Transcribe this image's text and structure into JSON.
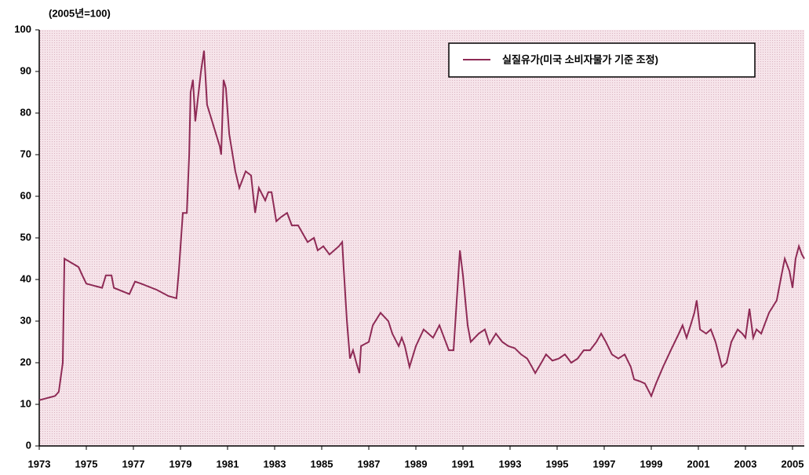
{
  "chart_data": {
    "type": "line",
    "axis_title": "(2005년=100)",
    "x": [
      1973.0,
      1973.67,
      1973.83,
      1974.0,
      1974.07,
      1974.67,
      1974.83,
      1975.0,
      1975.67,
      1975.83,
      1976.07,
      1976.17,
      1976.83,
      1977.07,
      1977.33,
      1978.0,
      1978.5,
      1978.83,
      1978.93,
      1979.1,
      1979.27,
      1979.37,
      1979.43,
      1979.53,
      1979.63,
      1979.73,
      1979.87,
      1980.0,
      1980.13,
      1980.4,
      1980.67,
      1980.73,
      1980.83,
      1980.93,
      1981.07,
      1981.33,
      1981.5,
      1981.77,
      1982.0,
      1982.17,
      1982.33,
      1982.6,
      1982.73,
      1982.87,
      1983.07,
      1983.27,
      1983.53,
      1983.73,
      1984.0,
      1984.2,
      1984.4,
      1984.67,
      1984.83,
      1985.07,
      1985.33,
      1985.53,
      1985.73,
      1985.87,
      1985.93,
      1986.07,
      1986.2,
      1986.33,
      1986.47,
      1986.6,
      1986.67,
      1987.0,
      1987.17,
      1987.5,
      1987.83,
      1988.0,
      1988.27,
      1988.4,
      1988.53,
      1988.73,
      1989.0,
      1989.33,
      1989.53,
      1989.73,
      1990.0,
      1990.2,
      1990.4,
      1990.6,
      1990.77,
      1990.87,
      1991.0,
      1991.2,
      1991.33,
      1991.67,
      1991.93,
      1992.13,
      1992.4,
      1992.67,
      1992.93,
      1993.2,
      1993.47,
      1993.73,
      1993.93,
      1994.07,
      1994.33,
      1994.53,
      1994.8,
      1995.07,
      1995.33,
      1995.6,
      1995.87,
      1996.13,
      1996.4,
      1996.67,
      1996.87,
      1997.07,
      1997.33,
      1997.6,
      1997.87,
      1998.13,
      1998.27,
      1998.53,
      1998.73,
      1999.0,
      1999.2,
      1999.5,
      1999.83,
      2000.17,
      2000.33,
      2000.5,
      2000.67,
      2000.83,
      2000.93,
      2001.07,
      2001.33,
      2001.53,
      2001.73,
      2002.0,
      2002.2,
      2002.4,
      2002.67,
      2002.87,
      2003.0,
      2003.17,
      2003.33,
      2003.47,
      2003.67,
      2004.0,
      2004.33,
      2004.53,
      2004.67,
      2004.87,
      2005.0,
      2005.13,
      2005.27,
      2005.4,
      2005.5
    ],
    "series": [
      {
        "name": "실질유가(미국 소비자물가 기준 조정)",
        "color": "#8e2a55",
        "values": [
          11,
          12,
          13,
          20,
          45,
          43,
          41,
          39,
          38,
          41,
          41,
          38,
          36.5,
          39.5,
          39,
          37.5,
          36,
          35.5,
          42,
          56,
          56,
          70,
          85,
          88,
          78,
          83,
          90,
          95,
          82,
          77,
          72,
          70,
          88,
          86,
          75,
          66,
          62,
          66,
          65,
          56,
          62,
          59,
          61,
          61,
          54,
          55,
          56,
          53,
          53,
          51,
          49,
          50,
          47,
          48,
          46,
          47,
          48,
          49,
          43,
          30,
          21,
          23,
          20,
          17.5,
          24,
          25,
          29,
          32,
          30,
          27,
          24,
          26,
          24,
          19,
          24,
          28,
          27,
          26,
          29,
          26,
          23,
          23,
          38,
          47,
          41,
          29,
          25,
          27,
          28,
          24.5,
          27,
          25,
          24,
          23.5,
          22,
          21,
          19,
          17.5,
          20,
          22,
          20.5,
          21,
          22,
          20,
          21,
          23,
          23,
          25,
          27,
          25,
          22,
          21,
          22,
          19,
          16,
          15.5,
          15,
          12,
          15,
          19,
          23,
          27,
          29,
          26,
          29,
          32,
          35,
          28,
          27,
          28,
          25,
          19,
          20,
          25,
          28,
          27,
          26,
          33,
          26,
          28,
          27,
          32,
          35,
          41,
          45,
          42,
          38,
          45,
          48,
          46,
          45
        ]
      }
    ],
    "xlim": [
      1973,
      2005.5
    ],
    "xticks": [
      1973,
      1975,
      1977,
      1979,
      1981,
      1983,
      1985,
      1987,
      1989,
      1991,
      1993,
      1995,
      1997,
      1999,
      2001,
      2003,
      2005
    ],
    "ylim": [
      0,
      100
    ],
    "yticks": [
      0,
      10,
      20,
      30,
      40,
      50,
      60,
      70,
      80,
      90,
      100
    ],
    "legend": "top-right"
  }
}
